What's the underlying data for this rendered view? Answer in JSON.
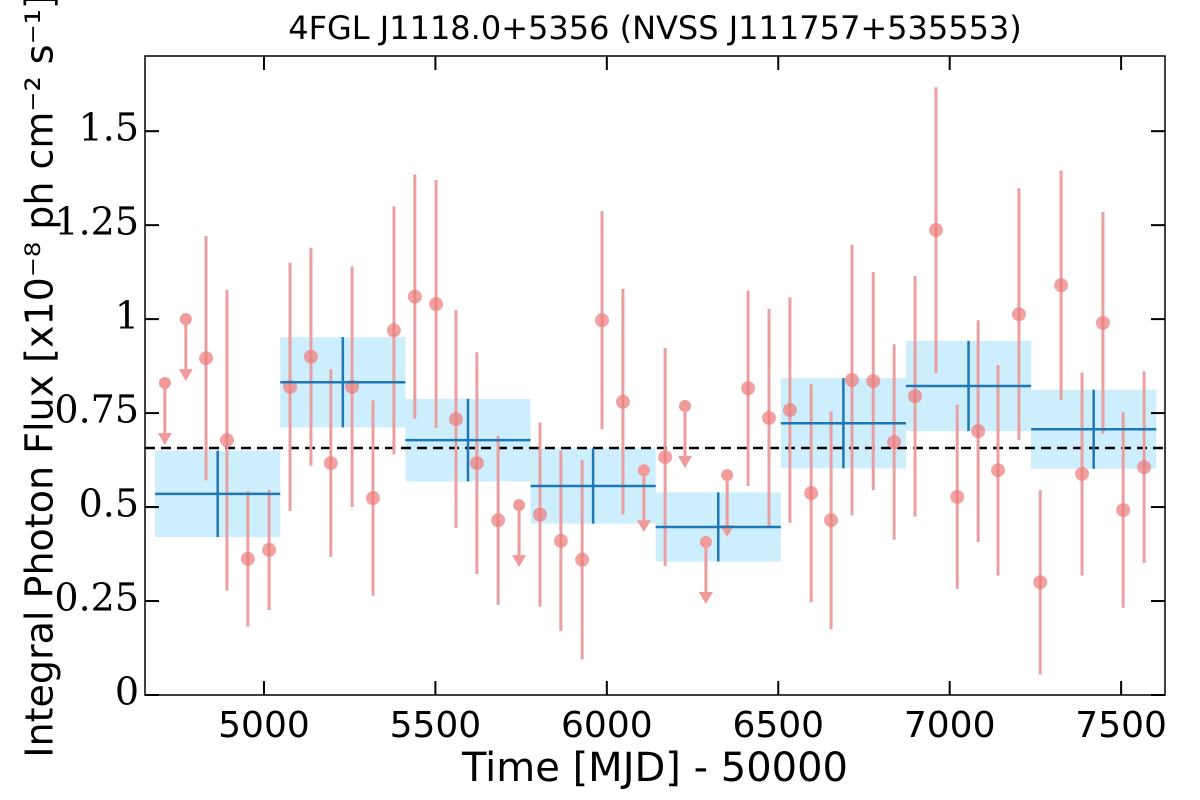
{
  "chart_data": {
    "type": "lightcurve",
    "title": "4FGL J1118.0+5356 (NVSS J111757+535553)",
    "x_label": "Time [MJD] - 50000",
    "y_label": "Integral Photon Flux [x10⁻⁸ ph cm⁻² s⁻¹]",
    "xlim": [
      4653,
      7628
    ],
    "ylim": [
      0,
      1.7
    ],
    "xticks": [
      5000,
      5500,
      6000,
      6500,
      7000,
      7500
    ],
    "yticks": [
      0,
      0.25,
      0.5,
      0.75,
      1,
      1.25,
      1.5
    ],
    "reference_line": 0.657,
    "points": {
      "color": "#ee7a7a",
      "error_color": "#e8a0a0",
      "x": [
        4831,
        4892,
        4953,
        5015,
        5076,
        5137,
        5195,
        5257,
        5318,
        5379,
        5440,
        5502,
        5560,
        5621,
        5683,
        5805,
        5866,
        5928,
        5986,
        6047,
        6170,
        6412,
        6473,
        6534,
        6596,
        6654,
        6715,
        6777,
        6838,
        6899,
        6960,
        7022,
        7083,
        7141,
        7202,
        7264,
        7325,
        7386,
        7447,
        7506,
        7567
      ],
      "values": [
        0.896,
        0.678,
        0.362,
        0.386,
        0.82,
        0.9,
        0.617,
        0.82,
        0.524,
        0.97,
        1.06,
        1.04,
        0.734,
        0.617,
        0.465,
        0.48,
        0.41,
        0.36,
        0.997,
        0.78,
        0.633,
        0.816,
        0.737,
        0.758,
        0.537,
        0.465,
        0.838,
        0.835,
        0.673,
        0.795,
        1.237,
        0.527,
        0.702,
        0.598,
        1.013,
        0.3,
        1.09,
        0.588,
        0.99,
        0.492,
        0.606
      ],
      "errors": [
        0.325,
        0.4,
        0.18,
        0.16,
        0.33,
        0.29,
        0.25,
        0.32,
        0.26,
        0.33,
        0.325,
        0.33,
        0.29,
        0.295,
        0.225,
        0.245,
        0.24,
        0.265,
        0.29,
        0.3,
        0.29,
        0.26,
        0.29,
        0.3,
        0.29,
        0.29,
        0.36,
        0.29,
        0.26,
        0.32,
        0.38,
        0.245,
        0.295,
        0.28,
        0.335,
        0.245,
        0.305,
        0.27,
        0.295,
        0.26,
        0.255
      ]
    },
    "upper_limits": {
      "color": "#f09a9a",
      "x": [
        4711,
        4772,
        5744,
        6108,
        6228,
        6289,
        6351
      ],
      "values": [
        0.83,
        1.0,
        0.505,
        0.598,
        0.769,
        0.407,
        0.585
      ]
    },
    "bins": {
      "color": "#1f77b4",
      "box_color": "#cdeefc",
      "x": [
        4865,
        5230,
        5595,
        5960,
        6325,
        6690,
        7055,
        7420
      ],
      "xerr": [
        182.5,
        182.5,
        182.5,
        182.5,
        182.5,
        182.5,
        182.5,
        182.5
      ],
      "values": [
        0.535,
        0.832,
        0.678,
        0.556,
        0.447,
        0.723,
        0.822,
        0.707
      ],
      "errors": [
        0.115,
        0.12,
        0.11,
        0.1,
        0.092,
        0.12,
        0.12,
        0.105
      ]
    }
  }
}
